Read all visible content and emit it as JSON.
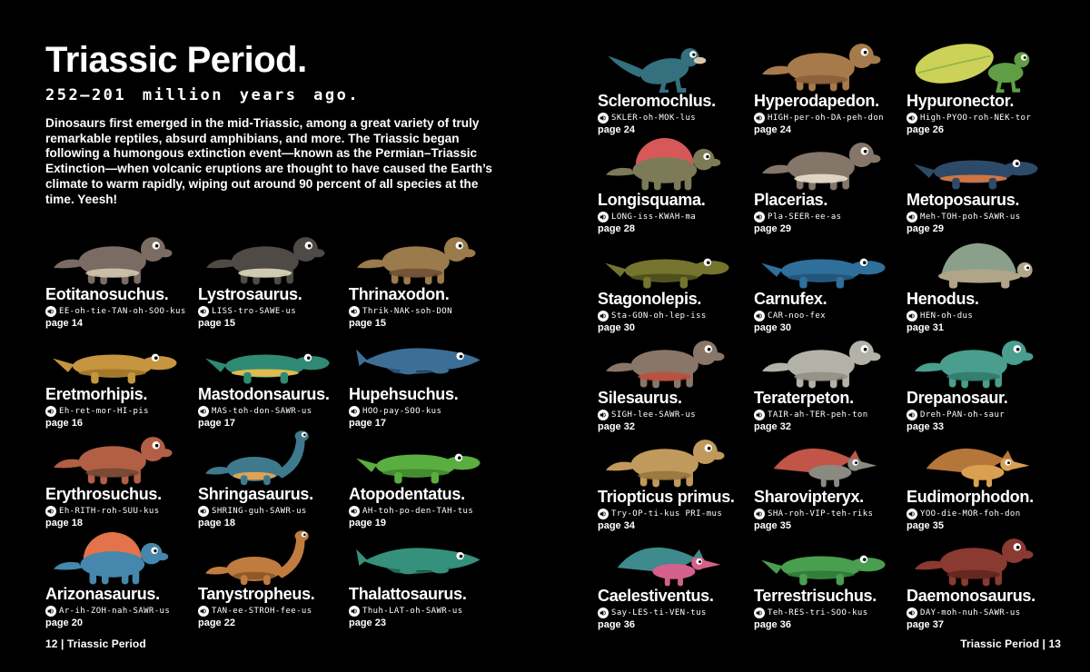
{
  "colors": {
    "background": "#000000",
    "text": "#ffffff"
  },
  "icons": {
    "pronunciation": "speaker-icon"
  },
  "left_page": {
    "title": "Triassic Period.",
    "subtitle": "252–201 million years ago.",
    "intro": "Dinosaurs first emerged in the mid-Triassic, among a great variety of truly remarkable reptiles, absurd amphibians, and more. The Triassic began following a humongous extinction event—known as the Permian–Triassic Extinction—when volcanic eruptions are thought to have caused the Earth’s climate to warm rapidly, wiping out around 90 percent of all species at the time. Yeesh!",
    "footer": "12 | Triassic Period",
    "dinosaurs": [
      {
        "name": "Eotitanosuchus.",
        "pronunciation": "EE-oh-tie-TAN-oh-SOO-kus",
        "page": "page 14",
        "shape": "quad",
        "body": "#7b6c63",
        "accent": "#d8cdb4"
      },
      {
        "name": "Lystrosaurus.",
        "pronunciation": "LISS-tro-SAWE-us",
        "page": "page 15",
        "shape": "quad",
        "body": "#4e4a45",
        "accent": "#e8e0c8"
      },
      {
        "name": "Thrinaxodon.",
        "pronunciation": "Thrik-NAK-soh-DON",
        "page": "page 15",
        "shape": "quad",
        "body": "#9b7a4b",
        "accent": "#6b4f33"
      },
      {
        "name": "Eretmorhipis.",
        "pronunciation": "Eh-ret-mor-HI-pis",
        "page": "page 16",
        "shape": "croc",
        "body": "#c5953f",
        "accent": "#a07428"
      },
      {
        "name": "Mastodonsaurus.",
        "pronunciation": "MAS-toh-don-SAWR-us",
        "page": "page 17",
        "shape": "croc",
        "body": "#2f8a74",
        "accent": "#f2c14c"
      },
      {
        "name": "Hupehsuchus.",
        "pronunciation": "HOO-pay-SOO-kus",
        "page": "page 17",
        "shape": "swim",
        "body": "#3d6f96",
        "accent": "#2c5578"
      },
      {
        "name": "Erythrosuchus.",
        "pronunciation": "Eh-RITH-roh-SUU-kus",
        "page": "page 18",
        "shape": "quad",
        "body": "#b25f45",
        "accent": "#6f4832"
      },
      {
        "name": "Shringasaurus.",
        "pronunciation": "SHRING-guh-SAWR-us",
        "page": "page 18",
        "shape": "longneck",
        "body": "#3f7a8c",
        "accent": "#f2a74b"
      },
      {
        "name": "Atopodentatus.",
        "pronunciation": "AH-toh-po-den-TAH-tus",
        "page": "page 19",
        "shape": "croc",
        "body": "#5aae3f",
        "accent": "#3f8a2e"
      },
      {
        "name": "Arizonasaurus.",
        "pronunciation": "Ar-ih-ZOH-nah-SAWR-us",
        "page": "page 20",
        "shape": "sail",
        "body": "#4587ad",
        "accent": "#e2734b"
      },
      {
        "name": "Tanystropheus.",
        "pronunciation": "TAN-ee-STROH-fee-us",
        "page": "page 22",
        "shape": "longneck",
        "body": "#c07c3f",
        "accent": "#8a5526"
      },
      {
        "name": "Thalattosaurus.",
        "pronunciation": "Thuh-LAT-oh-SAWR-us",
        "page": "page 23",
        "shape": "swim",
        "body": "#35907c",
        "accent": "#23705e"
      }
    ]
  },
  "right_page": {
    "footer": "Triassic Period | 13",
    "dinosaurs": [
      {
        "name": "Scleromochlus.",
        "pronunciation": "SKLER-oh-MOK-lus",
        "page": "page 24",
        "shape": "biped",
        "body": "#34707e",
        "accent": "#d9c9a8"
      },
      {
        "name": "Hyperodapedon.",
        "pronunciation": "HIGH-per-oh-DA-peh-don",
        "page": "page 24",
        "shape": "quad",
        "body": "#a67a4b",
        "accent": "#8a5f38"
      },
      {
        "name": "Hypuronector.",
        "pronunciation": "High-PYOO-roh-NEK-tor",
        "page": "page 26",
        "shape": "leaf",
        "body": "#5f9e45",
        "accent": "#ccd257"
      },
      {
        "name": "Longisquama.",
        "pronunciation": "LONG-iss-KWAH-ma",
        "page": "page 28",
        "shape": "sail",
        "body": "#7d7a58",
        "accent": "#d65858"
      },
      {
        "name": "Placerias.",
        "pronunciation": "Pla-SEER-ee-as",
        "page": "page 29",
        "shape": "quad",
        "body": "#857669",
        "accent": "#efe6d2"
      },
      {
        "name": "Metoposaurus.",
        "pronunciation": "Meh-TOH-poh-SAWR-us",
        "page": "page 29",
        "shape": "croc",
        "body": "#2d4a68",
        "accent": "#e07a3f"
      },
      {
        "name": "Stagonolepis.",
        "pronunciation": "Sta-GON-oh-lep-iss",
        "page": "page 30",
        "shape": "croc",
        "body": "#75742e",
        "accent": "#4c4c1e"
      },
      {
        "name": "Carnufex.",
        "pronunciation": "CAR-noo-fex",
        "page": "page 30",
        "shape": "croc",
        "body": "#2f6f9c",
        "accent": "#245378"
      },
      {
        "name": "Henodus.",
        "pronunciation": "HEN-oh-dus",
        "page": "page 31",
        "shape": "turtle",
        "body": "#b0a489",
        "accent": "#8ba08a"
      },
      {
        "name": "Silesaurus.",
        "pronunciation": "SIGH-lee-SAWR-us",
        "page": "page 32",
        "shape": "quad",
        "body": "#8a7668",
        "accent": "#c04c3c"
      },
      {
        "name": "Teraterpeton.",
        "pronunciation": "TAIR-ah-TER-peh-ton",
        "page": "page 32",
        "shape": "quad",
        "body": "#b2b2a8",
        "accent": "#8e8e84"
      },
      {
        "name": "Drepanosaur.",
        "pronunciation": "Dreh-PAN-oh-saur",
        "page": "page 33",
        "shape": "quad",
        "body": "#4a9e8e",
        "accent": "#2f7a6c"
      },
      {
        "name": "Triopticus primus.",
        "pronunciation": "Try-OP-ti-kus PRI-mus",
        "page": "page 34",
        "shape": "quad",
        "body": "#c09a5c",
        "accent": "#96743c"
      },
      {
        "name": "Sharovipteryx.",
        "pronunciation": "SHA-roh-VIP-teh-riks",
        "page": "page 35",
        "shape": "flyer",
        "body": "#8a8a80",
        "accent": "#c05548"
      },
      {
        "name": "Eudimorphodon.",
        "pronunciation": "YOO-die-MOR-foh-don",
        "page": "page 35",
        "shape": "flyer",
        "body": "#d9a052",
        "accent": "#b5763a"
      },
      {
        "name": "Caelestiventus.",
        "pronunciation": "Say-LES-ti-VEN-tus",
        "page": "page 36",
        "shape": "flyer",
        "body": "#d4608c",
        "accent": "#3f8a8c"
      },
      {
        "name": "Terrestrisuchus.",
        "pronunciation": "Teh-RES-tri-SOO-kus",
        "page": "page 36",
        "shape": "croc",
        "body": "#4a9e50",
        "accent": "#2f7a38"
      },
      {
        "name": "Daemonosaurus.",
        "pronunciation": "DAY-moh-nuh-SAWR-us",
        "page": "page 37",
        "shape": "quad",
        "body": "#8a3a30",
        "accent": "#5f241e"
      }
    ]
  }
}
